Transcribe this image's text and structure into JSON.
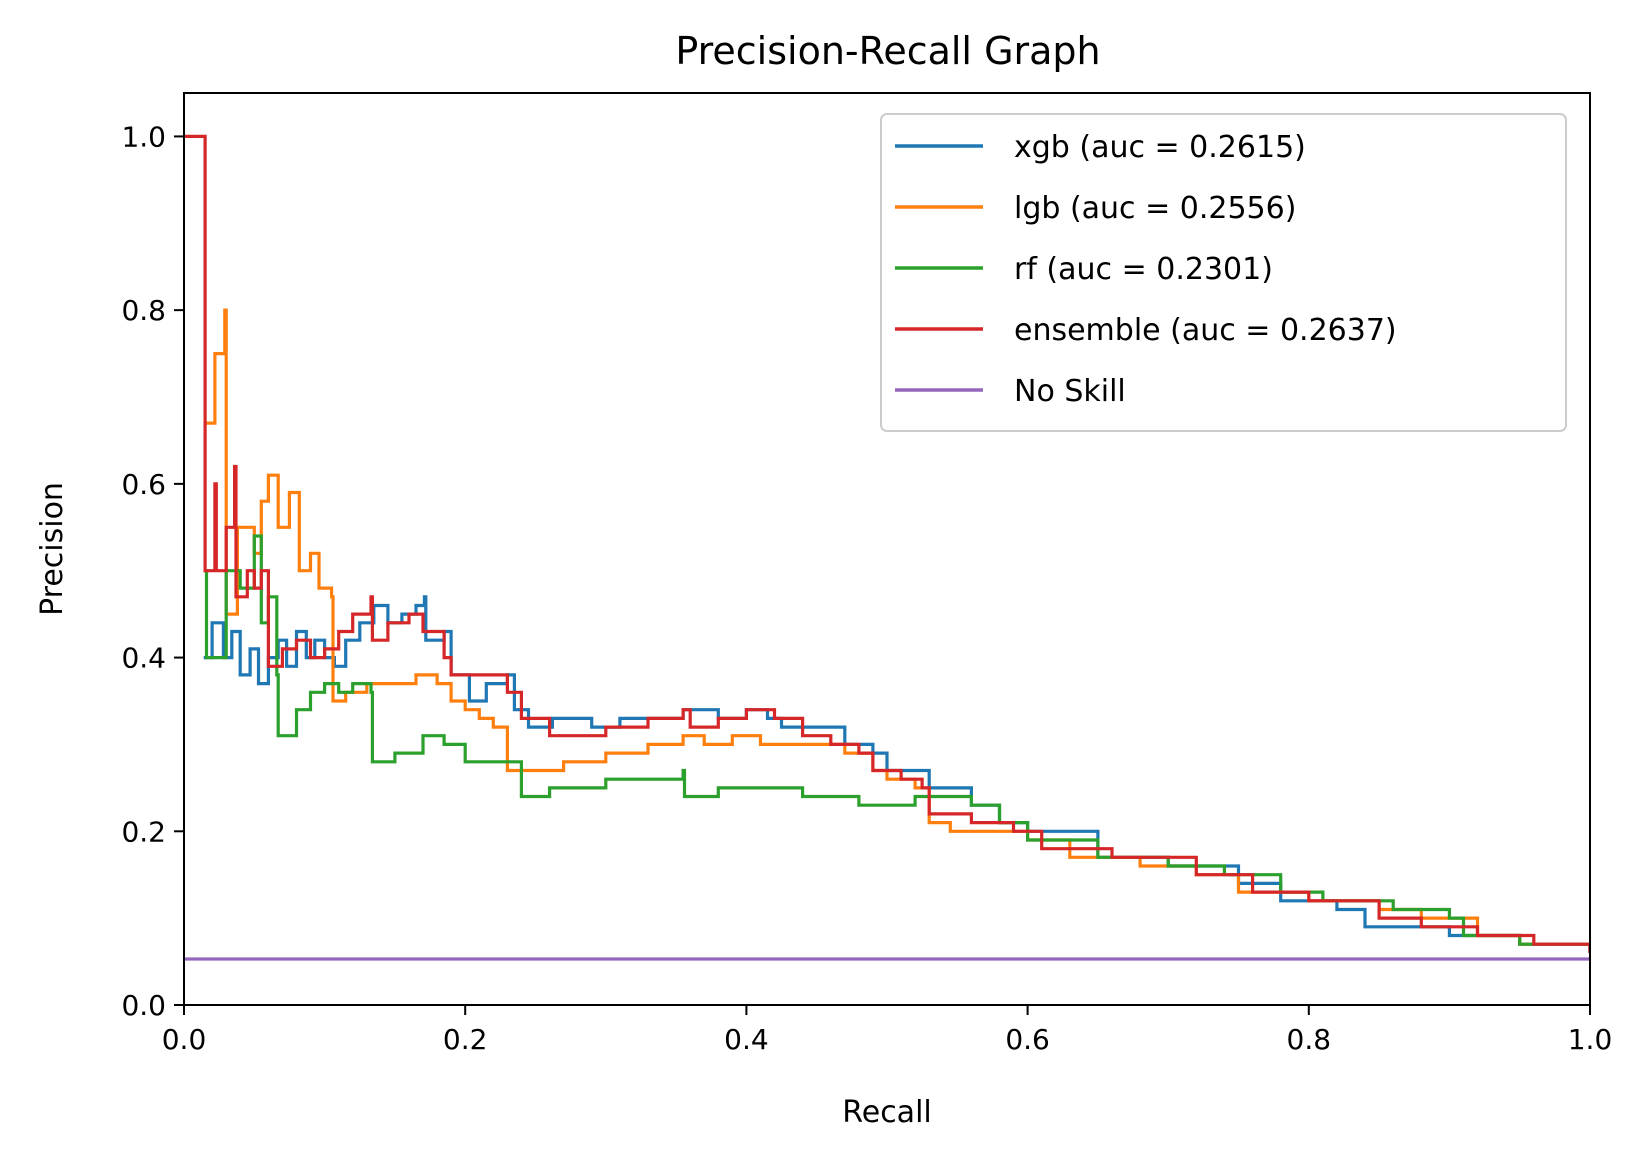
{
  "chart_data": {
    "type": "line",
    "title": "Precision-Recall Graph",
    "xlabel": "Recall",
    "ylabel": "Precision",
    "xlim": [
      0.0,
      1.0
    ],
    "ylim": [
      0.0,
      1.05
    ],
    "xticks": [
      "0.0",
      "0.2",
      "0.4",
      "0.6",
      "0.8",
      "1.0"
    ],
    "yticks": [
      "0.0",
      "0.2",
      "0.4",
      "0.6",
      "0.8",
      "1.0"
    ],
    "grid": false,
    "legend_position": "top-right",
    "series": [
      {
        "name": "xgb (auc = 0.2615)",
        "color": "#1f77b4",
        "points": [
          [
            0.014,
            0.4
          ],
          [
            0.02,
            0.44
          ],
          [
            0.028,
            0.4
          ],
          [
            0.034,
            0.43
          ],
          [
            0.04,
            0.38
          ],
          [
            0.047,
            0.41
          ],
          [
            0.053,
            0.37
          ],
          [
            0.06,
            0.4
          ],
          [
            0.067,
            0.42
          ],
          [
            0.073,
            0.39
          ],
          [
            0.08,
            0.43
          ],
          [
            0.087,
            0.4
          ],
          [
            0.093,
            0.42
          ],
          [
            0.1,
            0.4
          ],
          [
            0.107,
            0.39
          ],
          [
            0.115,
            0.42
          ],
          [
            0.125,
            0.44
          ],
          [
            0.135,
            0.46
          ],
          [
            0.145,
            0.44
          ],
          [
            0.155,
            0.45
          ],
          [
            0.165,
            0.46
          ],
          [
            0.171,
            0.47
          ],
          [
            0.172,
            0.42
          ],
          [
            0.185,
            0.43
          ],
          [
            0.19,
            0.38
          ],
          [
            0.2,
            0.38
          ],
          [
            0.203,
            0.35
          ],
          [
            0.215,
            0.37
          ],
          [
            0.23,
            0.38
          ],
          [
            0.235,
            0.34
          ],
          [
            0.245,
            0.32
          ],
          [
            0.262,
            0.33
          ],
          [
            0.29,
            0.32
          ],
          [
            0.31,
            0.33
          ],
          [
            0.33,
            0.33
          ],
          [
            0.355,
            0.34
          ],
          [
            0.38,
            0.33
          ],
          [
            0.4,
            0.34
          ],
          [
            0.415,
            0.33
          ],
          [
            0.425,
            0.32
          ],
          [
            0.44,
            0.32
          ],
          [
            0.47,
            0.3
          ],
          [
            0.49,
            0.29
          ],
          [
            0.5,
            0.27
          ],
          [
            0.53,
            0.25
          ],
          [
            0.56,
            0.23
          ],
          [
            0.58,
            0.21
          ],
          [
            0.6,
            0.2
          ],
          [
            0.65,
            0.17
          ],
          [
            0.7,
            0.16
          ],
          [
            0.75,
            0.14
          ],
          [
            0.78,
            0.12
          ],
          [
            0.82,
            0.11
          ],
          [
            0.84,
            0.09
          ],
          [
            0.87,
            0.09
          ],
          [
            0.9,
            0.08
          ],
          [
            0.95,
            0.07
          ],
          [
            1.0,
            0.06
          ]
        ]
      },
      {
        "name": "lgb (auc = 0.2556)",
        "color": "#ff7f0e",
        "points": [
          [
            0.014,
            0.67
          ],
          [
            0.022,
            0.75
          ],
          [
            0.029,
            0.8
          ],
          [
            0.03,
            0.45
          ],
          [
            0.038,
            0.55
          ],
          [
            0.05,
            0.52
          ],
          [
            0.055,
            0.58
          ],
          [
            0.06,
            0.61
          ],
          [
            0.067,
            0.55
          ],
          [
            0.075,
            0.59
          ],
          [
            0.082,
            0.5
          ],
          [
            0.09,
            0.52
          ],
          [
            0.096,
            0.48
          ],
          [
            0.105,
            0.47
          ],
          [
            0.106,
            0.35
          ],
          [
            0.115,
            0.36
          ],
          [
            0.13,
            0.37
          ],
          [
            0.15,
            0.37
          ],
          [
            0.165,
            0.38
          ],
          [
            0.18,
            0.37
          ],
          [
            0.19,
            0.35
          ],
          [
            0.2,
            0.34
          ],
          [
            0.21,
            0.33
          ],
          [
            0.22,
            0.32
          ],
          [
            0.23,
            0.27
          ],
          [
            0.25,
            0.27
          ],
          [
            0.27,
            0.28
          ],
          [
            0.3,
            0.29
          ],
          [
            0.33,
            0.3
          ],
          [
            0.355,
            0.31
          ],
          [
            0.37,
            0.3
          ],
          [
            0.39,
            0.31
          ],
          [
            0.41,
            0.3
          ],
          [
            0.44,
            0.3
          ],
          [
            0.47,
            0.29
          ],
          [
            0.49,
            0.27
          ],
          [
            0.5,
            0.26
          ],
          [
            0.52,
            0.25
          ],
          [
            0.53,
            0.21
          ],
          [
            0.545,
            0.2
          ],
          [
            0.57,
            0.2
          ],
          [
            0.6,
            0.19
          ],
          [
            0.63,
            0.17
          ],
          [
            0.68,
            0.16
          ],
          [
            0.72,
            0.15
          ],
          [
            0.75,
            0.13
          ],
          [
            0.8,
            0.12
          ],
          [
            0.85,
            0.11
          ],
          [
            0.88,
            0.1
          ],
          [
            0.92,
            0.08
          ],
          [
            0.95,
            0.07
          ],
          [
            1.0,
            0.06
          ]
        ]
      },
      {
        "name": "rf (auc = 0.2301)",
        "color": "#2ca02c",
        "points": [
          [
            0.014,
            0.5
          ],
          [
            0.016,
            0.4
          ],
          [
            0.03,
            0.5
          ],
          [
            0.04,
            0.48
          ],
          [
            0.05,
            0.54
          ],
          [
            0.055,
            0.44
          ],
          [
            0.06,
            0.47
          ],
          [
            0.066,
            0.38
          ],
          [
            0.067,
            0.31
          ],
          [
            0.08,
            0.34
          ],
          [
            0.09,
            0.36
          ],
          [
            0.1,
            0.37
          ],
          [
            0.11,
            0.36
          ],
          [
            0.12,
            0.37
          ],
          [
            0.133,
            0.36
          ],
          [
            0.134,
            0.28
          ],
          [
            0.15,
            0.29
          ],
          [
            0.17,
            0.31
          ],
          [
            0.185,
            0.3
          ],
          [
            0.2,
            0.28
          ],
          [
            0.22,
            0.28
          ],
          [
            0.24,
            0.24
          ],
          [
            0.26,
            0.25
          ],
          [
            0.3,
            0.26
          ],
          [
            0.34,
            0.26
          ],
          [
            0.355,
            0.27
          ],
          [
            0.356,
            0.24
          ],
          [
            0.38,
            0.25
          ],
          [
            0.42,
            0.25
          ],
          [
            0.44,
            0.24
          ],
          [
            0.48,
            0.23
          ],
          [
            0.52,
            0.24
          ],
          [
            0.56,
            0.23
          ],
          [
            0.58,
            0.21
          ],
          [
            0.6,
            0.19
          ],
          [
            0.65,
            0.17
          ],
          [
            0.7,
            0.16
          ],
          [
            0.74,
            0.15
          ],
          [
            0.78,
            0.13
          ],
          [
            0.81,
            0.12
          ],
          [
            0.86,
            0.11
          ],
          [
            0.9,
            0.1
          ],
          [
            0.91,
            0.08
          ],
          [
            0.95,
            0.07
          ],
          [
            1.0,
            0.06
          ]
        ]
      },
      {
        "name": "ensemble (auc = 0.2637)",
        "color": "#d62728",
        "points": [
          [
            0.0,
            1.0
          ],
          [
            0.014,
            1.0
          ],
          [
            0.015,
            0.5
          ],
          [
            0.022,
            0.6
          ],
          [
            0.023,
            0.5
          ],
          [
            0.03,
            0.55
          ],
          [
            0.036,
            0.62
          ],
          [
            0.037,
            0.47
          ],
          [
            0.045,
            0.5
          ],
          [
            0.05,
            0.48
          ],
          [
            0.055,
            0.5
          ],
          [
            0.06,
            0.39
          ],
          [
            0.07,
            0.41
          ],
          [
            0.08,
            0.42
          ],
          [
            0.09,
            0.4
          ],
          [
            0.1,
            0.41
          ],
          [
            0.11,
            0.43
          ],
          [
            0.12,
            0.45
          ],
          [
            0.133,
            0.47
          ],
          [
            0.134,
            0.42
          ],
          [
            0.145,
            0.44
          ],
          [
            0.16,
            0.45
          ],
          [
            0.17,
            0.43
          ],
          [
            0.175,
            0.43
          ],
          [
            0.185,
            0.4
          ],
          [
            0.19,
            0.38
          ],
          [
            0.21,
            0.38
          ],
          [
            0.23,
            0.36
          ],
          [
            0.24,
            0.33
          ],
          [
            0.26,
            0.31
          ],
          [
            0.3,
            0.32
          ],
          [
            0.33,
            0.33
          ],
          [
            0.355,
            0.34
          ],
          [
            0.36,
            0.32
          ],
          [
            0.38,
            0.33
          ],
          [
            0.4,
            0.34
          ],
          [
            0.42,
            0.33
          ],
          [
            0.44,
            0.31
          ],
          [
            0.46,
            0.3
          ],
          [
            0.48,
            0.29
          ],
          [
            0.49,
            0.27
          ],
          [
            0.51,
            0.26
          ],
          [
            0.525,
            0.25
          ],
          [
            0.53,
            0.22
          ],
          [
            0.56,
            0.21
          ],
          [
            0.59,
            0.2
          ],
          [
            0.61,
            0.18
          ],
          [
            0.66,
            0.17
          ],
          [
            0.72,
            0.15
          ],
          [
            0.76,
            0.13
          ],
          [
            0.8,
            0.12
          ],
          [
            0.85,
            0.1
          ],
          [
            0.88,
            0.09
          ],
          [
            0.92,
            0.08
          ],
          [
            0.96,
            0.07
          ],
          [
            1.0,
            0.06
          ]
        ]
      },
      {
        "name": "No Skill",
        "color": "#9467bd",
        "points": [
          [
            0.0,
            0.053
          ],
          [
            1.0,
            0.053
          ]
        ]
      }
    ]
  }
}
